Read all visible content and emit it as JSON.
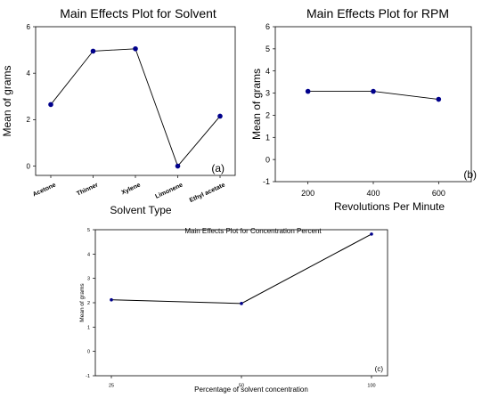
{
  "chart_data": [
    {
      "type": "line",
      "title": "Main Effects Plot for Solvent",
      "panel_label": "(a)",
      "xlabel": "Solvent Type",
      "ylabel": "Mean of grams",
      "categories": [
        "Acetone",
        "Thinner",
        "Xylene",
        "Limonene",
        "Ethyl acetate"
      ],
      "values": [
        2.65,
        4.95,
        5.05,
        0.0,
        2.15
      ],
      "ylim": [
        -0.4,
        6
      ],
      "yticks": [
        0,
        2,
        4,
        6
      ],
      "color": "#00008b",
      "grid": false
    },
    {
      "type": "line",
      "title": "Main Effects Plot for RPM",
      "panel_label": "(b)",
      "xlabel": "Revolutions Per Minute",
      "ylabel": "Mean of grams",
      "x": [
        200,
        400,
        600
      ],
      "values": [
        3.08,
        3.08,
        2.72
      ],
      "xlim": [
        100,
        700
      ],
      "xticks": [
        200,
        400,
        600
      ],
      "ylim": [
        -1,
        6
      ],
      "yticks": [
        -1,
        0,
        1,
        2,
        3,
        4,
        5,
        6
      ],
      "color": "#00008b",
      "grid": false
    },
    {
      "type": "line",
      "title": "Main Effects Plot for Concentration Percent",
      "panel_label": "(c)",
      "xlabel": "Percentage of solvent concentration",
      "ylabel": "Mean of grams",
      "categories": [
        "25",
        "50",
        "100"
      ],
      "values": [
        2.12,
        1.97,
        4.82
      ],
      "ylim": [
        -1,
        5
      ],
      "yticks": [
        -1,
        0,
        1,
        2,
        3,
        4,
        5
      ],
      "color": "#00008b",
      "grid": false
    }
  ]
}
